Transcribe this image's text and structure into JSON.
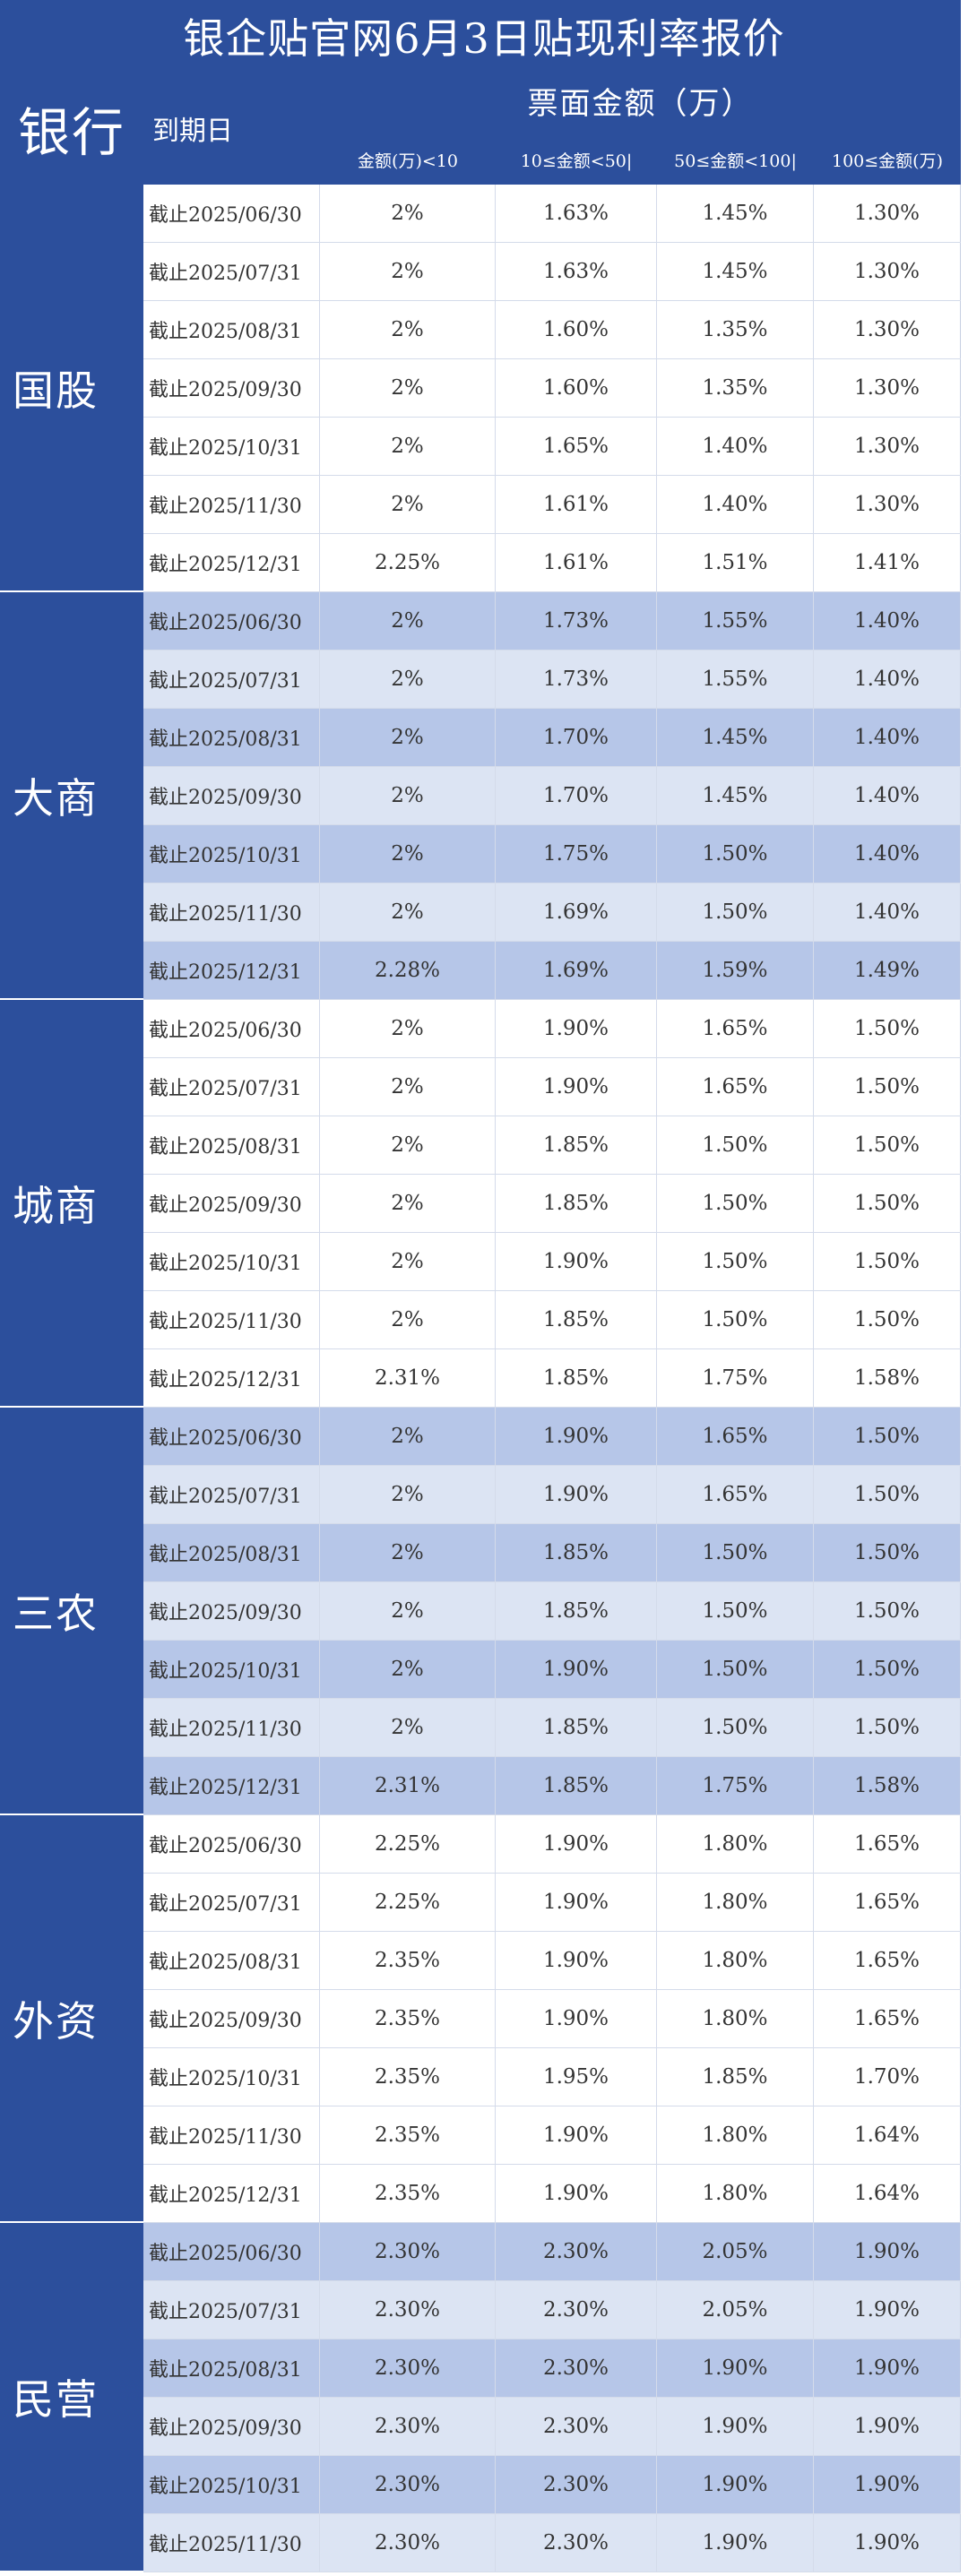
{
  "title": "银企贴官网6月3日贴现利率报价",
  "header": {
    "bank": "银行",
    "due_date": "到期日",
    "amount": "票面金额（万）",
    "columns": [
      "金额(万)<10",
      "10≤金额<50|",
      "50≤金额<100|",
      "100≤金额(万)"
    ]
  },
  "groups": [
    {
      "name": "国股",
      "rows": [
        {
          "date": "截止2025/06/30",
          "v": [
            "2%",
            "1.63%",
            "1.45%",
            "1.30%"
          ]
        },
        {
          "date": "截止2025/07/31",
          "v": [
            "2%",
            "1.63%",
            "1.45%",
            "1.30%"
          ]
        },
        {
          "date": "截止2025/08/31",
          "v": [
            "2%",
            "1.60%",
            "1.35%",
            "1.30%"
          ]
        },
        {
          "date": "截止2025/09/30",
          "v": [
            "2%",
            "1.60%",
            "1.35%",
            "1.30%"
          ]
        },
        {
          "date": "截止2025/10/31",
          "v": [
            "2%",
            "1.65%",
            "1.40%",
            "1.30%"
          ]
        },
        {
          "date": "截止2025/11/30",
          "v": [
            "2%",
            "1.61%",
            "1.40%",
            "1.30%"
          ]
        },
        {
          "date": "截止2025/12/31",
          "v": [
            "2.25%",
            "1.61%",
            "1.51%",
            "1.41%"
          ]
        }
      ]
    },
    {
      "name": "大商",
      "rows": [
        {
          "date": "截止2025/06/30",
          "v": [
            "2%",
            "1.73%",
            "1.55%",
            "1.40%"
          ]
        },
        {
          "date": "截止2025/07/31",
          "v": [
            "2%",
            "1.73%",
            "1.55%",
            "1.40%"
          ]
        },
        {
          "date": "截止2025/08/31",
          "v": [
            "2%",
            "1.70%",
            "1.45%",
            "1.40%"
          ]
        },
        {
          "date": "截止2025/09/30",
          "v": [
            "2%",
            "1.70%",
            "1.45%",
            "1.40%"
          ]
        },
        {
          "date": "截止2025/10/31",
          "v": [
            "2%",
            "1.75%",
            "1.50%",
            "1.40%"
          ]
        },
        {
          "date": "截止2025/11/30",
          "v": [
            "2%",
            "1.69%",
            "1.50%",
            "1.40%"
          ]
        },
        {
          "date": "截止2025/12/31",
          "v": [
            "2.28%",
            "1.69%",
            "1.59%",
            "1.49%"
          ]
        }
      ]
    },
    {
      "name": "城商",
      "rows": [
        {
          "date": "截止2025/06/30",
          "v": [
            "2%",
            "1.90%",
            "1.65%",
            "1.50%"
          ]
        },
        {
          "date": "截止2025/07/31",
          "v": [
            "2%",
            "1.90%",
            "1.65%",
            "1.50%"
          ]
        },
        {
          "date": "截止2025/08/31",
          "v": [
            "2%",
            "1.85%",
            "1.50%",
            "1.50%"
          ]
        },
        {
          "date": "截止2025/09/30",
          "v": [
            "2%",
            "1.85%",
            "1.50%",
            "1.50%"
          ]
        },
        {
          "date": "截止2025/10/31",
          "v": [
            "2%",
            "1.90%",
            "1.50%",
            "1.50%"
          ]
        },
        {
          "date": "截止2025/11/30",
          "v": [
            "2%",
            "1.85%",
            "1.50%",
            "1.50%"
          ]
        },
        {
          "date": "截止2025/12/31",
          "v": [
            "2.31%",
            "1.85%",
            "1.75%",
            "1.58%"
          ]
        }
      ]
    },
    {
      "name": "三农",
      "rows": [
        {
          "date": "截止2025/06/30",
          "v": [
            "2%",
            "1.90%",
            "1.65%",
            "1.50%"
          ]
        },
        {
          "date": "截止2025/07/31",
          "v": [
            "2%",
            "1.90%",
            "1.65%",
            "1.50%"
          ]
        },
        {
          "date": "截止2025/08/31",
          "v": [
            "2%",
            "1.85%",
            "1.50%",
            "1.50%"
          ]
        },
        {
          "date": "截止2025/09/30",
          "v": [
            "2%",
            "1.85%",
            "1.50%",
            "1.50%"
          ]
        },
        {
          "date": "截止2025/10/31",
          "v": [
            "2%",
            "1.90%",
            "1.50%",
            "1.50%"
          ]
        },
        {
          "date": "截止2025/11/30",
          "v": [
            "2%",
            "1.85%",
            "1.50%",
            "1.50%"
          ]
        },
        {
          "date": "截止2025/12/31",
          "v": [
            "2.31%",
            "1.85%",
            "1.75%",
            "1.58%"
          ]
        }
      ]
    },
    {
      "name": "外资",
      "rows": [
        {
          "date": "截止2025/06/30",
          "v": [
            "2.25%",
            "1.90%",
            "1.80%",
            "1.65%"
          ]
        },
        {
          "date": "截止2025/07/31",
          "v": [
            "2.25%",
            "1.90%",
            "1.80%",
            "1.65%"
          ]
        },
        {
          "date": "截止2025/08/31",
          "v": [
            "2.35%",
            "1.90%",
            "1.80%",
            "1.65%"
          ]
        },
        {
          "date": "截止2025/09/30",
          "v": [
            "2.35%",
            "1.90%",
            "1.80%",
            "1.65%"
          ]
        },
        {
          "date": "截止2025/10/31",
          "v": [
            "2.35%",
            "1.95%",
            "1.85%",
            "1.70%"
          ]
        },
        {
          "date": "截止2025/11/30",
          "v": [
            "2.35%",
            "1.90%",
            "1.80%",
            "1.64%"
          ]
        },
        {
          "date": "截止2025/12/31",
          "v": [
            "2.35%",
            "1.90%",
            "1.80%",
            "1.64%"
          ]
        }
      ]
    },
    {
      "name": "民营",
      "rows": [
        {
          "date": "截止2025/06/30",
          "v": [
            "2.30%",
            "2.30%",
            "2.05%",
            "1.90%"
          ]
        },
        {
          "date": "截止2025/07/31",
          "v": [
            "2.30%",
            "2.30%",
            "2.05%",
            "1.90%"
          ]
        },
        {
          "date": "截止2025/08/31",
          "v": [
            "2.30%",
            "2.30%",
            "1.90%",
            "1.90%"
          ]
        },
        {
          "date": "截止2025/09/30",
          "v": [
            "2.30%",
            "2.30%",
            "1.90%",
            "1.90%"
          ]
        },
        {
          "date": "截止2025/10/31",
          "v": [
            "2.30%",
            "2.30%",
            "1.90%",
            "1.90%"
          ]
        },
        {
          "date": "截止2025/11/30",
          "v": [
            "2.30%",
            "2.30%",
            "1.90%",
            "1.90%"
          ]
        }
      ]
    }
  ],
  "colors": {
    "header_blue": "#2c4f9c",
    "row_dark": "#b6c6e8",
    "row_light": "#dce4f3",
    "row_plain": "#ffffff"
  }
}
